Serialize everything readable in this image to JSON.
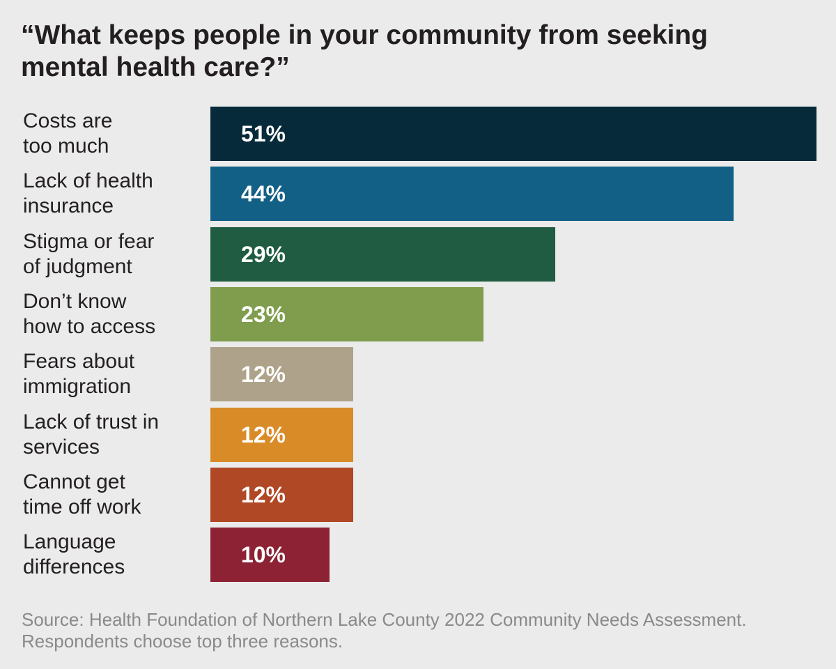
{
  "chart_data": {
    "type": "bar",
    "orientation": "horizontal",
    "title": "“What keeps people in your community from seeking mental health care?”",
    "categories": [
      "Costs are\ntoo much",
      "Lack of health\ninsurance",
      "Stigma or fear\nof judgment",
      "Don’t know\nhow to access",
      "Fears about\nimmigration",
      "Lack of trust in\nservices",
      "Cannot get\ntime off work",
      "Language\ndifferences"
    ],
    "values": [
      51,
      44,
      29,
      23,
      12,
      12,
      12,
      10
    ],
    "labels": [
      "51%",
      "44%",
      "29%",
      "23%",
      "12%",
      "12%",
      "12%",
      "10%"
    ],
    "colors": [
      "#062a3a",
      "#126086",
      "#1f5c42",
      "#7f9d4c",
      "#aea38a",
      "#d98b27",
      "#b04725",
      "#8c2233"
    ],
    "xlim": [
      0,
      51
    ],
    "grid": false,
    "xlabel": "",
    "ylabel": ""
  },
  "source": "Source: Health Foundation of Northern Lake County 2022 Community Needs Assessment. Respondents choose top three reasons."
}
